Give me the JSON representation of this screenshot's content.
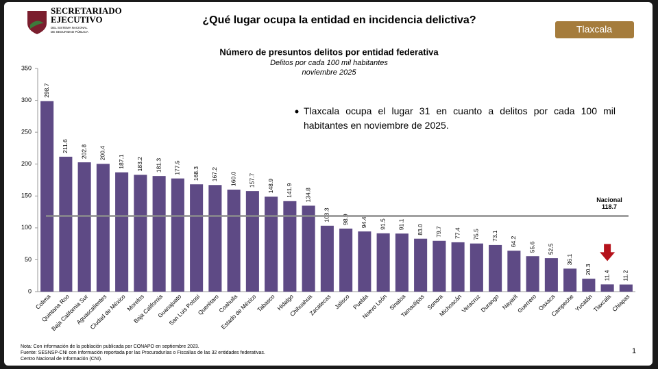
{
  "header": {
    "org": "SECRETARIADO",
    "org2": "EJECUTIVO",
    "org_sub": "DEL SISTEMA NACIONAL",
    "org_sub2": "DE SEGURIDAD PÚBLICA",
    "title": "¿Qué lugar ocupa la entidad en incidencia delictiva?",
    "badge": "Tlaxcala"
  },
  "chart_data": {
    "type": "bar",
    "title": "Número de presuntos delitos por entidad federativa",
    "subtitle": "Delitos por cada 100 mil habitantes",
    "period": "noviembre 2025",
    "annotation": "Tlaxcala ocupa el lugar 31 en cuanto a delitos por cada 100 mil habitantes en noviembre de 2025.",
    "categories": [
      "Colima",
      "Quintana Roo",
      "Baja California Sur",
      "Aguascalientes",
      "Ciudad de México",
      "Morelos",
      "Baja California",
      "Guanajuato",
      "San Luis Potosí",
      "Querétaro",
      "Coahuila",
      "Estado de México",
      "Tabasco",
      "Hidalgo",
      "Chihuahua",
      "Zacatecas",
      "Jalisco",
      "Puebla",
      "Nuevo León",
      "Sinaloa",
      "Tamaulipas",
      "Sonora",
      "Michoacán",
      "Veracruz",
      "Durango",
      "Nayarit",
      "Guerrero",
      "Oaxaca",
      "Campeche",
      "Yucatán",
      "Tlaxcala",
      "Chiapas"
    ],
    "values": [
      298.7,
      211.6,
      202.8,
      200.4,
      187.1,
      183.2,
      181.3,
      177.5,
      168.3,
      167.2,
      160.0,
      157.7,
      148.9,
      141.9,
      134.8,
      103.3,
      98.9,
      94.4,
      91.5,
      91.1,
      83.0,
      79.7,
      77.4,
      75.5,
      73.1,
      64.2,
      55.6,
      52.5,
      36.1,
      20.3,
      11.4,
      11.2
    ],
    "value_labels": [
      "298.7",
      "211.6",
      "202.8",
      "200.4",
      "187.1",
      "183.2",
      "181.3",
      "177.5",
      "168.3",
      "167.2",
      "160.0",
      "157.7",
      "148.9",
      "141.9",
      "134.8",
      "103.3",
      "98.9",
      "94.4",
      "91.5",
      "91.1",
      "83.0",
      "79.7",
      "77.4",
      "75.5",
      "73.1",
      "64.2",
      "55.6",
      "52.5",
      "36.1",
      "20.3",
      "11.4",
      "11.2"
    ],
    "color": "#5e4a85",
    "ylim": [
      0,
      350
    ],
    "yticks": [
      0,
      50,
      100,
      150,
      200,
      250,
      300,
      350
    ],
    "reference_line": {
      "label": "Nacional",
      "value": 118.7,
      "color": "#8c8c8c"
    }
  },
  "footnotes": [
    "Nota: Con información de la población publicada por CONAPO en septiembre 2023.",
    "Fuente: SESNSP-CNI con información reportada por las Procuradurías o Fiscalías de las 32 entidades federativas.",
    "Centro Nacional de Información (CNI)."
  ],
  "page_number": "1"
}
